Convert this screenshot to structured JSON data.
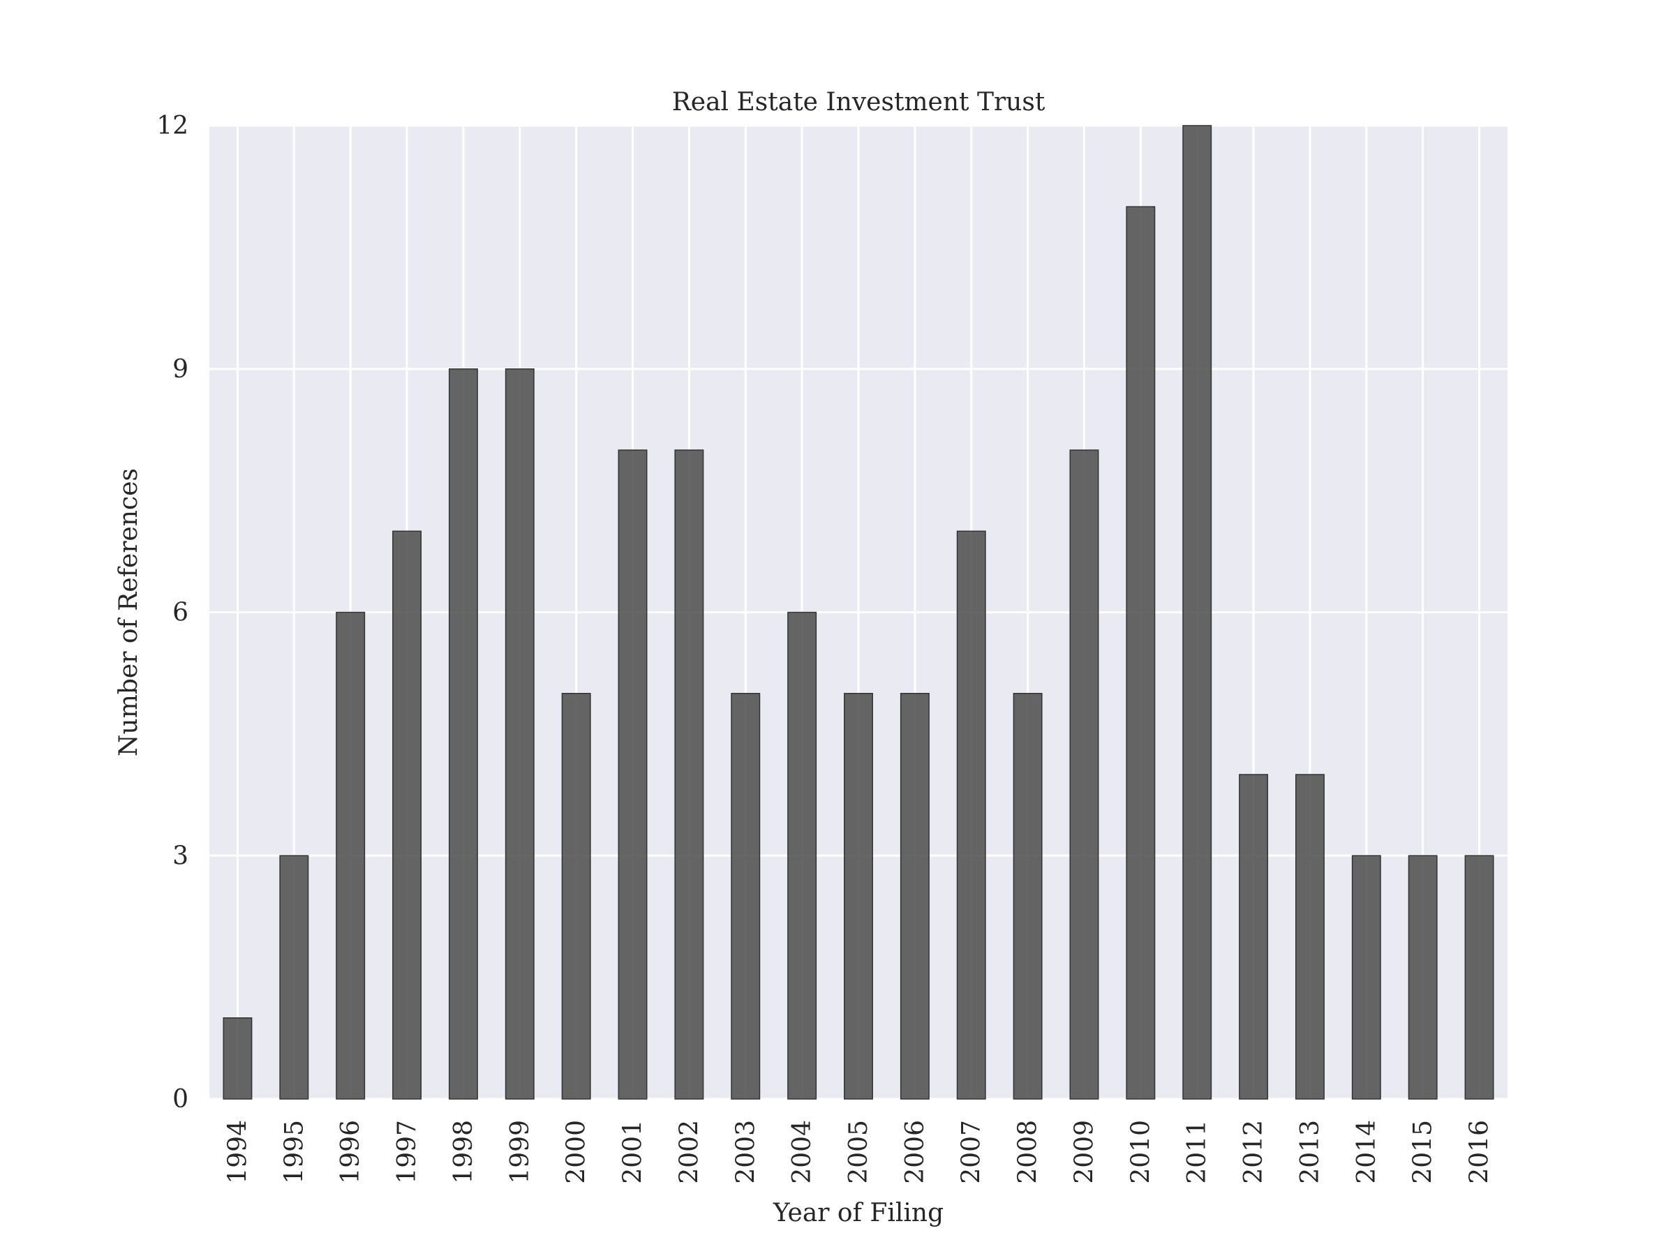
{
  "chart_data": {
    "type": "bar",
    "title": "Real Estate Investment Trust",
    "xlabel": "Year of Filing",
    "ylabel": "Number of References",
    "categories": [
      "1994",
      "1995",
      "1996",
      "1997",
      "1998",
      "1999",
      "2000",
      "2001",
      "2002",
      "2003",
      "2004",
      "2005",
      "2006",
      "2007",
      "2008",
      "2009",
      "2010",
      "2011",
      "2012",
      "2013",
      "2014",
      "2015",
      "2016"
    ],
    "values": [
      1,
      3,
      6,
      7,
      9,
      9,
      5,
      8,
      8,
      5,
      6,
      5,
      5,
      7,
      5,
      8,
      11,
      12,
      4,
      4,
      3,
      3,
      3
    ],
    "ylim": [
      0,
      12
    ],
    "yticks": [
      0,
      3,
      6,
      9,
      12
    ],
    "grid": true,
    "legend": "none",
    "colors": {
      "plot_background": "#EAEAF2",
      "grid": "#FFFFFF",
      "bar_fill": "#555555",
      "bar_stroke": "#333333",
      "text": "#262626"
    }
  }
}
